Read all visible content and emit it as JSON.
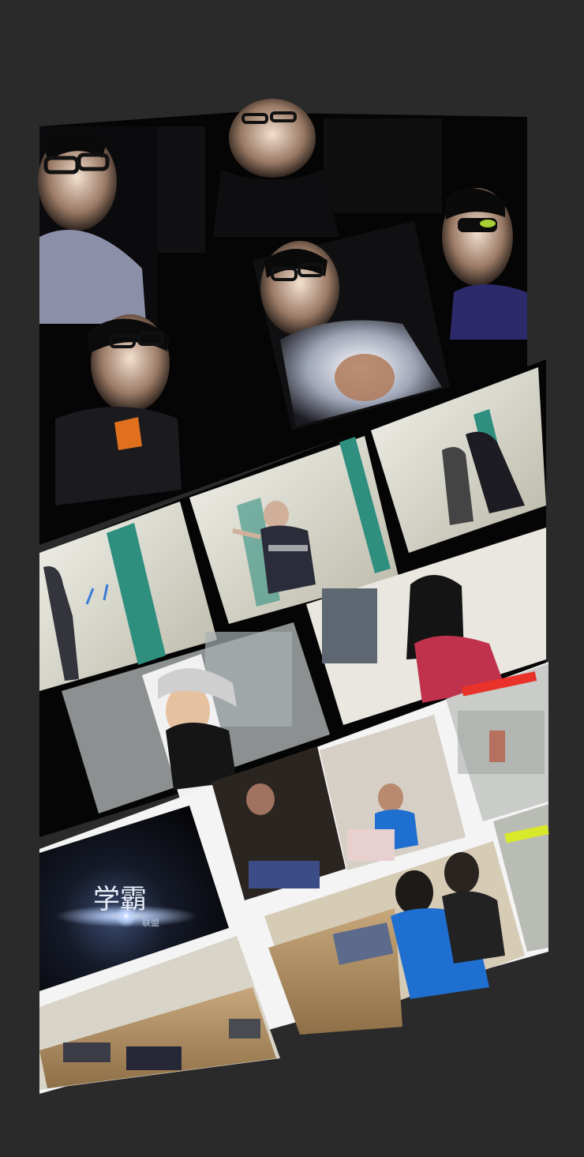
{
  "title": {
    "main": "学霸",
    "sub": "联盟"
  },
  "colors": {
    "background": "#2a2a2a",
    "panel_dark": "#050505",
    "panel_white": "#f4f4f4",
    "accent_teal": "#2f8f7f",
    "accent_red": "#e8322a",
    "accent_yellow": "#d8e82a",
    "shirt_blue": "#1e6fd0"
  },
  "icons": {
    "title_logo": "star-flare-icon"
  }
}
